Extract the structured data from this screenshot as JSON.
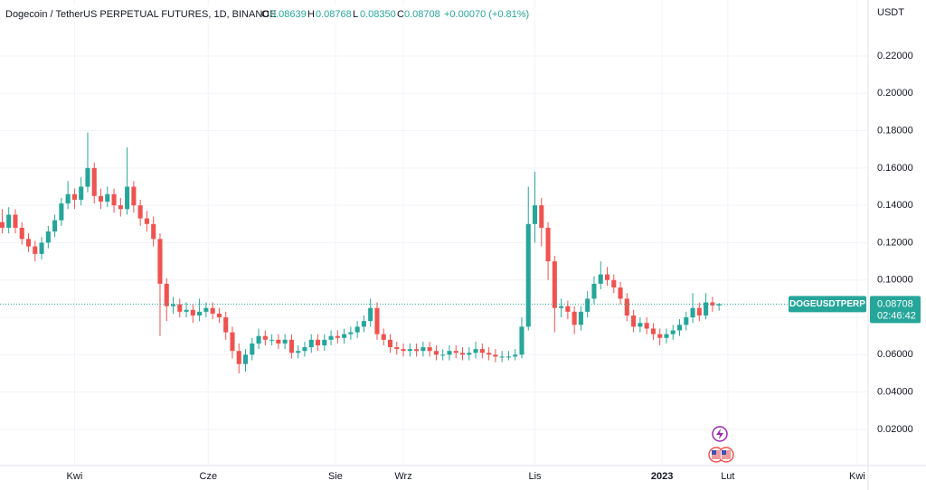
{
  "header": {
    "symbol": "Dogecoin / TetherUS PERPETUAL FUTURES, 1D, BINANCE",
    "open_label": "O",
    "open": "0.08639",
    "high_label": "H",
    "high": "0.08768",
    "low_label": "L",
    "low": "0.08350",
    "close_label": "C",
    "close": "0.08708",
    "change": "+0.00070 (+0.81%)",
    "currency": "USDT"
  },
  "chart_data": {
    "type": "candlestick",
    "up_color": "#26a69a",
    "down_color": "#ef5350",
    "grid": true,
    "x": [
      0,
      3,
      6,
      9,
      12,
      15,
      18,
      21,
      24,
      27,
      30,
      33,
      36,
      39,
      42,
      45,
      48,
      51,
      54,
      57,
      60,
      63,
      66,
      69,
      72,
      75,
      78,
      81,
      84,
      87,
      90,
      93,
      96,
      99,
      102,
      105,
      108,
      111,
      114,
      117,
      120,
      123,
      126,
      129,
      132,
      135,
      138,
      141,
      144,
      147,
      150,
      153,
      156,
      159,
      162,
      165,
      168,
      171,
      174,
      177,
      180,
      183,
      186,
      189,
      192,
      195,
      198,
      201,
      204,
      207,
      210,
      213,
      216,
      219,
      222,
      225,
      228,
      231,
      234,
      237,
      240,
      243,
      246,
      249,
      252,
      255,
      258,
      261,
      264,
      267,
      270,
      273,
      276,
      279,
      282,
      285,
      288,
      291,
      294,
      297,
      300,
      303,
      306,
      309,
      312,
      315,
      318,
      321,
      324,
      327
    ],
    "open": [
      0.131,
      0.128,
      0.135,
      0.128,
      0.122,
      0.118,
      0.114,
      0.12,
      0.126,
      0.132,
      0.141,
      0.146,
      0.143,
      0.15,
      0.16,
      0.145,
      0.142,
      0.146,
      0.14,
      0.138,
      0.15,
      0.14,
      0.133,
      0.13,
      0.122,
      0.098,
      0.086,
      0.087,
      0.083,
      0.084,
      0.081,
      0.083,
      0.085,
      0.082,
      0.08,
      0.072,
      0.062,
      0.055,
      0.06,
      0.066,
      0.07,
      0.068,
      0.068,
      0.066,
      0.068,
      0.061,
      0.062,
      0.064,
      0.068,
      0.065,
      0.068,
      0.07,
      0.069,
      0.071,
      0.072,
      0.075,
      0.078,
      0.085,
      0.071,
      0.068,
      0.064,
      0.063,
      0.062,
      0.063,
      0.062,
      0.064,
      0.062,
      0.06,
      0.06,
      0.062,
      0.061,
      0.06,
      0.061,
      0.063,
      0.061,
      0.06,
      0.059,
      0.059,
      0.059,
      0.06,
      0.075,
      0.13,
      0.14,
      0.128,
      0.11,
      0.085,
      0.086,
      0.083,
      0.076,
      0.083,
      0.09,
      0.098,
      0.103,
      0.1,
      0.096,
      0.09,
      0.081,
      0.075,
      0.077,
      0.074,
      0.071,
      0.069,
      0.071,
      0.073,
      0.076,
      0.08,
      0.085,
      0.081,
      0.088,
      0.08639
    ],
    "high": [
      0.138,
      0.139,
      0.138,
      0.131,
      0.125,
      0.121,
      0.123,
      0.129,
      0.135,
      0.144,
      0.153,
      0.149,
      0.155,
      0.179,
      0.163,
      0.149,
      0.15,
      0.149,
      0.144,
      0.171,
      0.153,
      0.143,
      0.137,
      0.134,
      0.125,
      0.101,
      0.091,
      0.09,
      0.088,
      0.087,
      0.09,
      0.088,
      0.088,
      0.085,
      0.083,
      0.075,
      0.066,
      0.063,
      0.069,
      0.074,
      0.073,
      0.071,
      0.071,
      0.071,
      0.071,
      0.065,
      0.067,
      0.071,
      0.071,
      0.071,
      0.073,
      0.073,
      0.074,
      0.075,
      0.078,
      0.081,
      0.09,
      0.088,
      0.074,
      0.071,
      0.067,
      0.066,
      0.066,
      0.066,
      0.067,
      0.067,
      0.065,
      0.063,
      0.065,
      0.065,
      0.064,
      0.064,
      0.067,
      0.066,
      0.064,
      0.063,
      0.062,
      0.062,
      0.063,
      0.08,
      0.15,
      0.158,
      0.144,
      0.131,
      0.113,
      0.09,
      0.089,
      0.086,
      0.086,
      0.094,
      0.102,
      0.11,
      0.107,
      0.103,
      0.099,
      0.093,
      0.084,
      0.08,
      0.08,
      0.077,
      0.074,
      0.074,
      0.076,
      0.079,
      0.083,
      0.093,
      0.088,
      0.093,
      0.091,
      0.08768
    ],
    "low": [
      0.125,
      0.125,
      0.125,
      0.119,
      0.115,
      0.11,
      0.111,
      0.117,
      0.123,
      0.129,
      0.138,
      0.138,
      0.14,
      0.147,
      0.141,
      0.138,
      0.139,
      0.136,
      0.134,
      0.135,
      0.136,
      0.129,
      0.126,
      0.118,
      0.07,
      0.078,
      0.082,
      0.08,
      0.08,
      0.077,
      0.078,
      0.08,
      0.079,
      0.077,
      0.068,
      0.058,
      0.05,
      0.051,
      0.057,
      0.063,
      0.065,
      0.065,
      0.063,
      0.063,
      0.058,
      0.058,
      0.059,
      0.061,
      0.062,
      0.062,
      0.065,
      0.066,
      0.066,
      0.068,
      0.069,
      0.072,
      0.075,
      0.068,
      0.065,
      0.061,
      0.06,
      0.059,
      0.059,
      0.059,
      0.059,
      0.059,
      0.057,
      0.057,
      0.057,
      0.058,
      0.057,
      0.057,
      0.058,
      0.058,
      0.057,
      0.056,
      0.056,
      0.057,
      0.057,
      0.058,
      0.073,
      0.12,
      0.118,
      0.1,
      0.072,
      0.08,
      0.079,
      0.071,
      0.073,
      0.08,
      0.087,
      0.095,
      0.097,
      0.093,
      0.087,
      0.078,
      0.072,
      0.072,
      0.071,
      0.068,
      0.065,
      0.066,
      0.068,
      0.07,
      0.073,
      0.077,
      0.078,
      0.079,
      0.083,
      0.0835
    ],
    "close": [
      0.128,
      0.135,
      0.128,
      0.122,
      0.118,
      0.114,
      0.12,
      0.126,
      0.132,
      0.141,
      0.146,
      0.143,
      0.15,
      0.16,
      0.145,
      0.142,
      0.146,
      0.14,
      0.138,
      0.15,
      0.14,
      0.133,
      0.13,
      0.122,
      0.098,
      0.086,
      0.087,
      0.083,
      0.084,
      0.081,
      0.083,
      0.085,
      0.082,
      0.08,
      0.072,
      0.062,
      0.055,
      0.06,
      0.066,
      0.07,
      0.068,
      0.068,
      0.066,
      0.068,
      0.061,
      0.062,
      0.064,
      0.068,
      0.065,
      0.068,
      0.07,
      0.069,
      0.071,
      0.072,
      0.075,
      0.078,
      0.085,
      0.071,
      0.068,
      0.064,
      0.063,
      0.062,
      0.063,
      0.062,
      0.064,
      0.062,
      0.06,
      0.06,
      0.062,
      0.061,
      0.06,
      0.061,
      0.063,
      0.061,
      0.06,
      0.059,
      0.059,
      0.059,
      0.06,
      0.075,
      0.13,
      0.14,
      0.128,
      0.11,
      0.085,
      0.086,
      0.083,
      0.076,
      0.083,
      0.09,
      0.098,
      0.103,
      0.1,
      0.096,
      0.09,
      0.081,
      0.075,
      0.077,
      0.074,
      0.071,
      0.069,
      0.071,
      0.073,
      0.076,
      0.08,
      0.085,
      0.081,
      0.088,
      0.08639,
      0.08708
    ],
    "xlim": [
      -1,
      395
    ],
    "xticks": [
      {
        "value": 33,
        "label": "Kwi"
      },
      {
        "value": 94,
        "label": "Cze"
      },
      {
        "value": 152,
        "label": "Sie"
      },
      {
        "value": 183,
        "label": "Wrz"
      },
      {
        "value": 243,
        "label": "Lis"
      },
      {
        "value": 301,
        "label": "2023"
      },
      {
        "value": 331,
        "label": "Lut"
      },
      {
        "value": 390,
        "label": "Kwi"
      }
    ],
    "ylim": [
      0.0006,
      0.25
    ],
    "yticks": [
      {
        "value": 0.02,
        "label": "0.02000"
      },
      {
        "value": 0.04,
        "label": "0.04000"
      },
      {
        "value": 0.06,
        "label": "0.06000"
      },
      {
        "value": 0.08,
        "label": "0.08000"
      },
      {
        "value": 0.1,
        "label": "0.10000"
      },
      {
        "value": 0.12,
        "label": "0.12000"
      },
      {
        "value": 0.14,
        "label": "0.14000"
      },
      {
        "value": 0.16,
        "label": "0.16000"
      },
      {
        "value": 0.18,
        "label": "0.18000"
      },
      {
        "value": 0.2,
        "label": "0.20000"
      },
      {
        "value": 0.22,
        "label": "0.22000"
      }
    ],
    "last_price": 0.08708,
    "symbol_tag": "DOGEUSDTPERP",
    "countdown": "02:46:42"
  }
}
